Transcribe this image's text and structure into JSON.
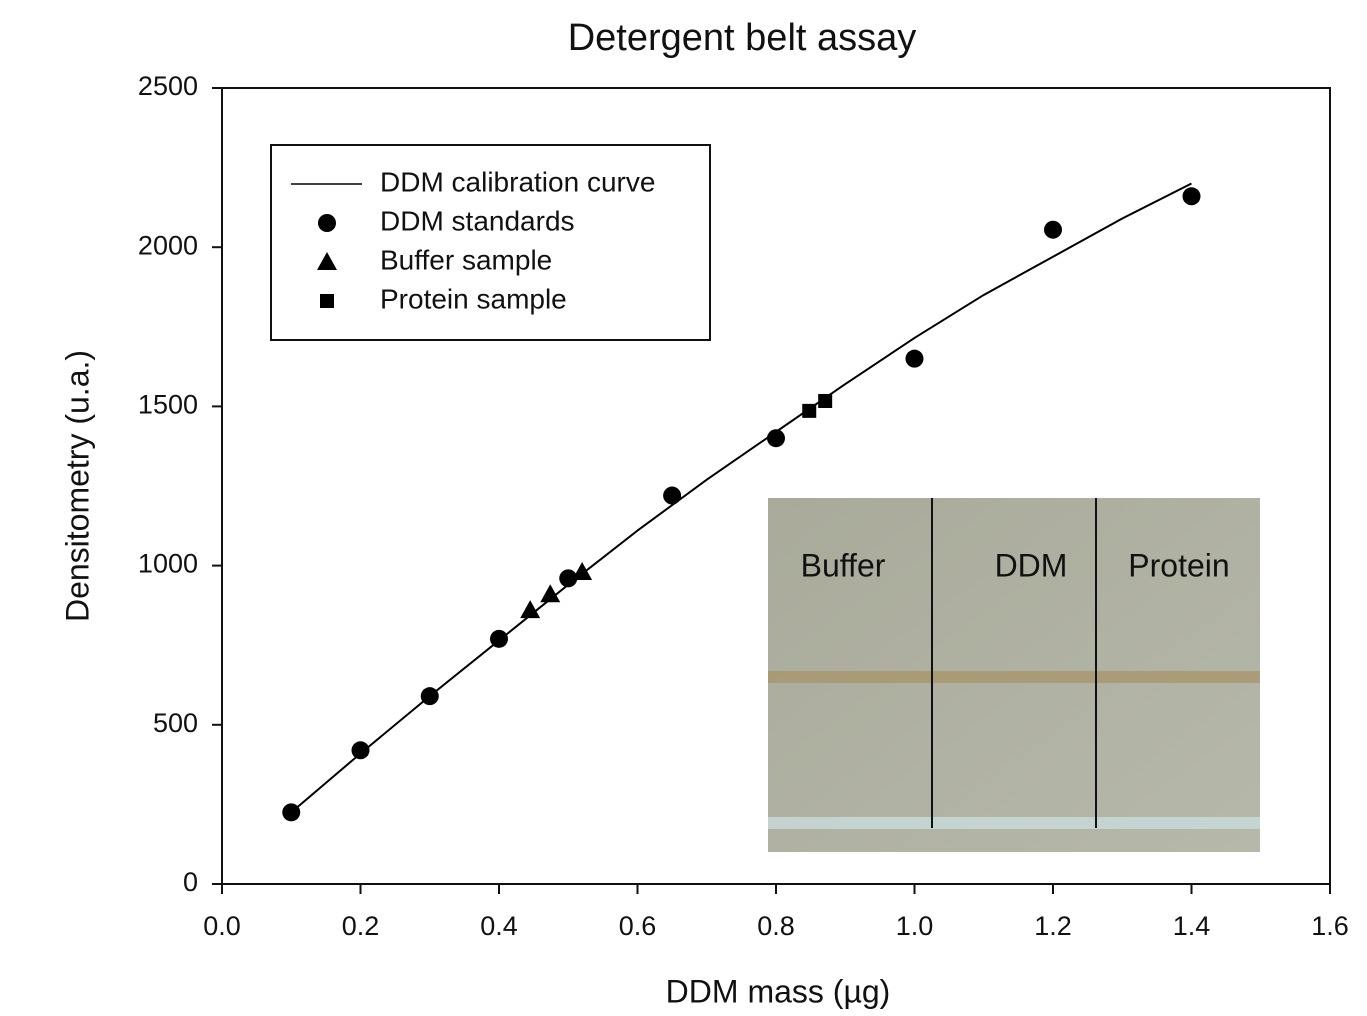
{
  "chart_data": {
    "type": "scatter",
    "title": "Detergent belt assay",
    "xlabel": "DDM mass (µg)",
    "ylabel": "Densitometry (u.a.)",
    "xlim": [
      0,
      1.6
    ],
    "ylim": [
      0,
      2500
    ],
    "xticks": [
      {
        "value": 0,
        "label": "0.0"
      },
      0.2,
      0.4,
      0.6,
      0.8,
      {
        "value": 1,
        "label": "1.0"
      },
      1.2,
      1.4,
      1.6
    ],
    "yticks": [
      0,
      500,
      1000,
      1500,
      2000,
      2500
    ],
    "legend": "upper left",
    "series": [
      {
        "name": "DDM calibration curve",
        "type": "line",
        "color": "#000000",
        "x": [
          0.1,
          0.2,
          0.3,
          0.4,
          0.5,
          0.6,
          0.7,
          0.8,
          0.9,
          1.0,
          1.1,
          1.2,
          1.3,
          1.4
        ],
        "values": [
          225,
          410,
          590,
          765,
          940,
          1110,
          1270,
          1420,
          1570,
          1715,
          1850,
          1970,
          2090,
          2200
        ]
      },
      {
        "name": "DDM standards",
        "marker": "circle",
        "color": "#000000",
        "x": [
          0.1,
          0.2,
          0.3,
          0.4,
          0.5,
          0.65,
          0.8,
          1.0,
          1.2,
          1.4
        ],
        "values": [
          225,
          420,
          590,
          770,
          960,
          1220,
          1400,
          1650,
          2055,
          2160
        ]
      },
      {
        "name": "Buffer sample",
        "marker": "triangle",
        "color": "#000000",
        "x": [
          0.445,
          0.474,
          0.52
        ],
        "values": [
          860,
          910,
          980
        ]
      },
      {
        "name": "Protein sample",
        "marker": "square",
        "color": "#000000",
        "x": [
          0.848,
          0.871
        ],
        "values": [
          1486,
          1517
        ]
      }
    ],
    "inset_labels": [
      "Buffer",
      "DDM",
      "Protein"
    ]
  }
}
